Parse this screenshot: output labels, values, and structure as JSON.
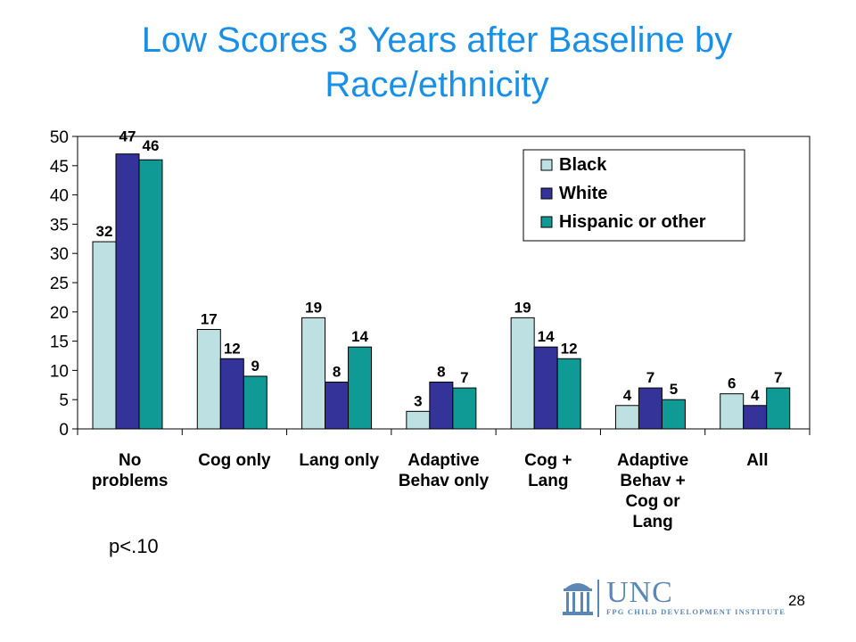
{
  "slide": {
    "title_line1": "Low Scores 3 Years after Baseline by",
    "title_line2": "Race/ethnicity",
    "note": "p<.10",
    "page_number": "28",
    "logo_name": "UNC",
    "logo_subtitle": "FPG CHILD DEVELOPMENT INSTITUTE"
  },
  "chart_data": {
    "type": "bar",
    "title": "",
    "xlabel": "",
    "ylabel": "",
    "ylim": [
      0,
      50
    ],
    "yticks": [
      0,
      5,
      10,
      15,
      20,
      25,
      30,
      35,
      40,
      45,
      50
    ],
    "categories": [
      [
        "No",
        "problems"
      ],
      [
        "Cog only"
      ],
      [
        "Lang only"
      ],
      [
        "Adaptive",
        "Behav only"
      ],
      [
        "Cog +",
        "Lang"
      ],
      [
        "Adaptive",
        "Behav +",
        "Cog or",
        "Lang"
      ],
      [
        "All"
      ]
    ],
    "series": [
      {
        "name": "Black",
        "color": "#bde0e3",
        "values": [
          32,
          17,
          19,
          3,
          19,
          4,
          6
        ]
      },
      {
        "name": "White",
        "color": "#333399",
        "values": [
          47,
          12,
          8,
          8,
          14,
          7,
          4
        ]
      },
      {
        "name": "Hispanic or other",
        "color": "#0f9a96",
        "values": [
          46,
          9,
          14,
          7,
          12,
          5,
          7
        ]
      }
    ],
    "data_labels": true,
    "grid": false,
    "legend_position": "top-right"
  }
}
